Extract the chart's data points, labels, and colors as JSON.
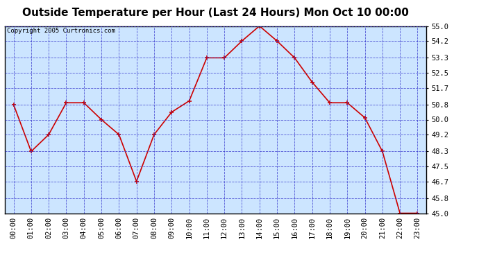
{
  "title": "Outside Temperature per Hour (Last 24 Hours) Mon Oct 10 00:00",
  "copyright": "Copyright 2005 Curtronics.com",
  "hours": [
    "00:00",
    "01:00",
    "02:00",
    "03:00",
    "04:00",
    "05:00",
    "06:00",
    "07:00",
    "08:00",
    "09:00",
    "10:00",
    "11:00",
    "12:00",
    "13:00",
    "14:00",
    "15:00",
    "16:00",
    "17:00",
    "18:00",
    "19:00",
    "20:00",
    "21:00",
    "22:00",
    "23:00"
  ],
  "temps": [
    50.8,
    48.3,
    49.2,
    50.9,
    50.9,
    50.0,
    49.2,
    46.7,
    49.2,
    50.4,
    51.0,
    53.3,
    53.3,
    54.2,
    55.0,
    54.2,
    53.3,
    52.0,
    50.9,
    50.9,
    50.1,
    48.3,
    45.0,
    45.0
  ],
  "ylim": [
    45.0,
    55.0
  ],
  "yticks": [
    45.0,
    45.8,
    46.7,
    47.5,
    48.3,
    49.2,
    50.0,
    50.8,
    51.7,
    52.5,
    53.3,
    54.2,
    55.0
  ],
  "line_color": "#cc0000",
  "marker_color": "#cc0000",
  "bg_color": "#cce5ff",
  "grid_color": "#3333cc",
  "title_fontsize": 11,
  "copyright_fontsize": 6.5,
  "tick_fontsize": 7.5,
  "fig_width": 6.9,
  "fig_height": 3.75,
  "dpi": 100
}
